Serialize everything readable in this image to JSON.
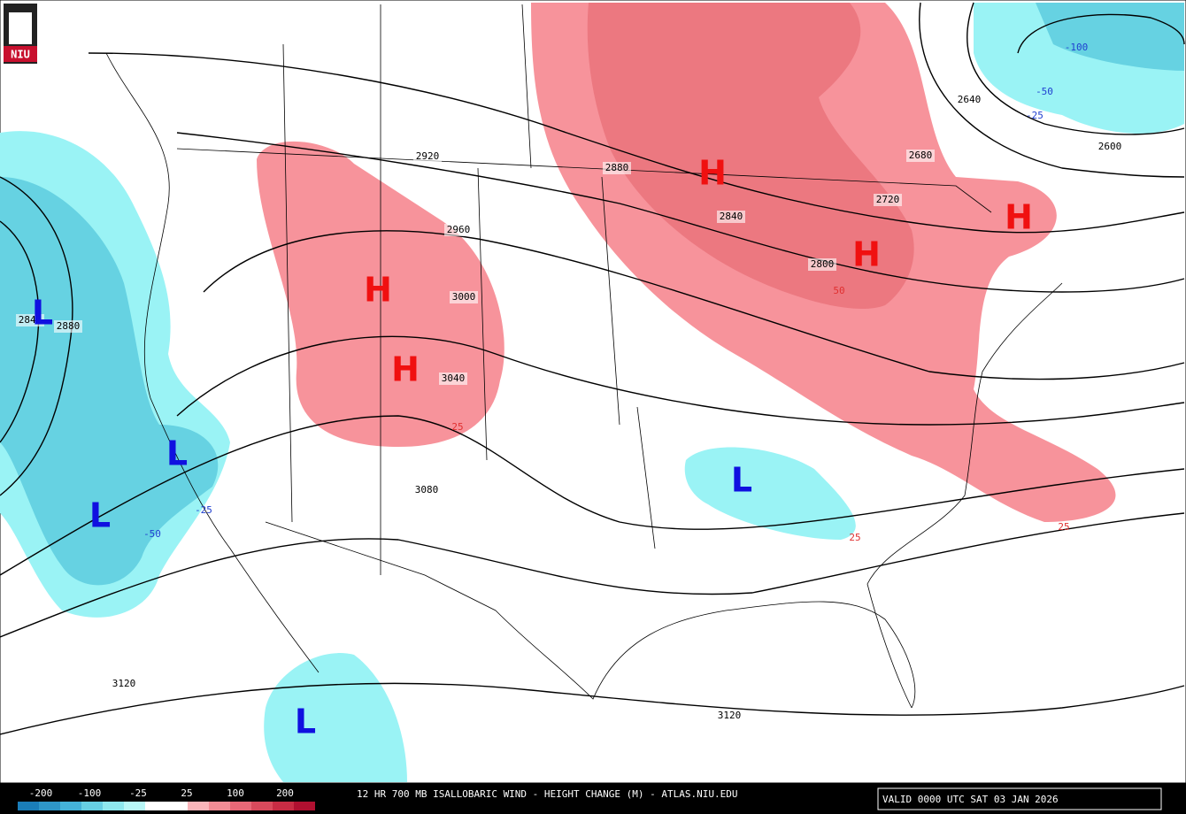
{
  "logo": "NIU",
  "contour_labels": [
    2920,
    2880,
    2960,
    3000,
    3040,
    3080,
    2840,
    2880,
    3120,
    3120,
    2640,
    2680,
    2720,
    2800,
    2840,
    2600
  ],
  "change_labels": [
    25,
    -25,
    -50,
    25,
    25,
    -100,
    -50,
    -25,
    50
  ],
  "centers": [
    "H",
    "H",
    "H",
    "H",
    "H",
    "L",
    "L",
    "L",
    "L",
    "L"
  ],
  "legend": {
    "labels": [
      -200,
      -100,
      -25,
      25,
      100,
      200
    ]
  },
  "footer": {
    "title": "12 HR 700 MB ISALLOBARIC WIND - HEIGHT CHANGE (M) - ATLAS.NIU.EDU",
    "valid": "VALID 0000 UTC SAT 03 JAN 2026"
  }
}
